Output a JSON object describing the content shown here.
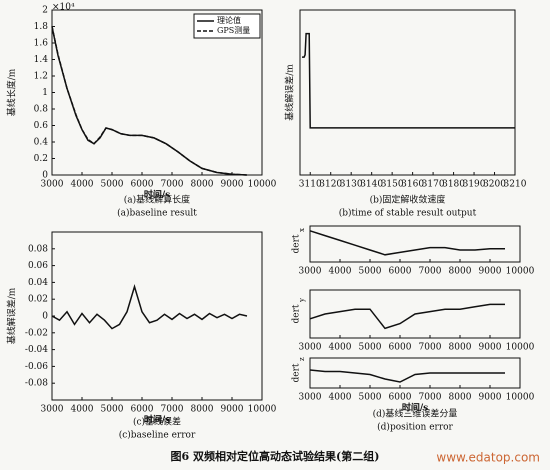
{
  "figure_caption": "图6  双频相对定位高动态试验结果(第二组)",
  "watermark": "www.edatop.com",
  "chart_data": [
    {
      "type": "line",
      "caption": "(a)基线解算长度",
      "caption_en": "(a)baseline result",
      "xlabel": "时间/s",
      "ylabel": "基线长度/m",
      "multiplier": "×10⁴",
      "legend": "upper right",
      "x": [
        3000,
        3200,
        3500,
        3800,
        4000,
        4200,
        4400,
        4600,
        4800,
        5000,
        5300,
        5600,
        6000,
        6400,
        6800,
        7200,
        7600,
        8000,
        8500,
        9000,
        9500
      ],
      "series": [
        {
          "name": "理论值",
          "color": "#111111",
          "dash": false,
          "values": [
            1.8,
            1.45,
            1.05,
            0.72,
            0.55,
            0.42,
            0.38,
            0.45,
            0.57,
            0.55,
            0.5,
            0.48,
            0.48,
            0.45,
            0.38,
            0.28,
            0.17,
            0.08,
            0.03,
            0.01,
            0
          ]
        },
        {
          "name": "GPS测量",
          "color": "#111111",
          "dash": true,
          "values": [
            1.8,
            1.46,
            1.05,
            0.73,
            0.55,
            0.43,
            0.38,
            0.46,
            0.57,
            0.55,
            0.5,
            0.48,
            0.48,
            0.45,
            0.38,
            0.28,
            0.17,
            0.08,
            0.03,
            0.01,
            0
          ]
        }
      ],
      "xlim": [
        3000,
        10000
      ],
      "xticks": [
        3000,
        4000,
        5000,
        6000,
        7000,
        8000,
        9000,
        10000
      ],
      "ylim": [
        0,
        2
      ],
      "yticks": [
        0,
        0.2,
        0.4,
        0.6,
        0.8,
        1,
        1.2,
        1.4,
        1.6,
        1.8,
        2
      ]
    },
    {
      "type": "line",
      "caption": "(b)固定解收敛速度",
      "caption_en": "(b)time of stable result output",
      "ylabel": "基线解误差/m",
      "x": [
        3106,
        3107,
        3107.5,
        3108,
        3109,
        3109.5,
        3110,
        3150,
        3210
      ],
      "series": [
        {
          "name": null,
          "color": "#111111",
          "dash": false,
          "values": [
            3,
            3,
            3.1,
            4,
            4,
            4,
            0,
            0,
            0
          ]
        }
      ],
      "xlim": [
        3105,
        3210
      ],
      "xticks": [
        3110,
        3120,
        3130,
        3140,
        3150,
        3160,
        3170,
        3180,
        3190,
        3200,
        3210
      ],
      "ylim": [
        -2,
        5
      ],
      "yticks": []
    },
    {
      "type": "line",
      "caption": "(c)基线误差",
      "caption_en": "(c)baseline error",
      "xlabel": "时间/s",
      "ylabel": "基线解误差/m",
      "x": [
        3000,
        3250,
        3500,
        3750,
        4000,
        4250,
        4500,
        4750,
        5000,
        5250,
        5500,
        5750,
        6000,
        6250,
        6500,
        6750,
        7000,
        7250,
        7500,
        7750,
        8000,
        8250,
        8500,
        8750,
        9000,
        9250,
        9500
      ],
      "series": [
        {
          "name": null,
          "color": "#111111",
          "dash": false,
          "values": [
            0,
            -0.005,
            0.005,
            -0.01,
            0.003,
            -0.008,
            0.002,
            -0.005,
            -0.015,
            -0.01,
            0.005,
            0.035,
            0.005,
            -0.008,
            -0.005,
            0.002,
            -0.004,
            0.003,
            -0.003,
            0.002,
            -0.004,
            0.003,
            -0.002,
            0.002,
            -0.003,
            0.002,
            0
          ]
        }
      ],
      "xlim": [
        3000,
        10000
      ],
      "xticks": [
        3000,
        4000,
        5000,
        6000,
        7000,
        8000,
        9000,
        10000
      ],
      "ylim": [
        -0.1,
        0.1
      ],
      "yticks": [
        -0.08,
        -0.06,
        -0.04,
        -0.02,
        0,
        0.02,
        0.04,
        0.06,
        0.08
      ]
    },
    {
      "type": "line",
      "ylabel": "dert",
      "ylabel_sub": "x",
      "x": [
        3000,
        3500,
        4000,
        4500,
        5000,
        5500,
        6000,
        6500,
        7000,
        7500,
        8000,
        8500,
        9000,
        9500
      ],
      "series": [
        {
          "name": null,
          "color": "#111111",
          "dash": false,
          "values": [
            0.08,
            0.06,
            0.04,
            0.02,
            0,
            -0.02,
            -0.01,
            0,
            0.01,
            0.01,
            0,
            0,
            0.005,
            0.005
          ]
        }
      ],
      "xlim": [
        3000,
        10000
      ],
      "xticks": [
        3000,
        4000,
        5000,
        6000,
        7000,
        8000,
        9000,
        10000
      ],
      "ylim": [
        -0.05,
        0.1
      ],
      "yticks": []
    },
    {
      "type": "line",
      "ylabel": "dert",
      "ylabel_sub": "y",
      "x": [
        3000,
        3500,
        4000,
        4500,
        5000,
        5500,
        6000,
        6500,
        7000,
        7500,
        8000,
        8500,
        9000,
        9500
      ],
      "series": [
        {
          "name": null,
          "color": "#111111",
          "dash": false,
          "values": [
            -0.01,
            0,
            0.005,
            0.01,
            0.01,
            -0.03,
            -0.02,
            0,
            0.005,
            0.01,
            0.01,
            0.015,
            0.02,
            0.02
          ]
        }
      ],
      "xlim": [
        3000,
        10000
      ],
      "xticks": [
        3000,
        4000,
        5000,
        6000,
        7000,
        8000,
        9000,
        10000
      ],
      "ylim": [
        -0.05,
        0.05
      ],
      "yticks": []
    },
    {
      "type": "line",
      "ylabel": "dert",
      "ylabel_sub": "z",
      "xlabel": "时间/s",
      "caption": "(d)基线三维误差分量",
      "caption_en": "(d)position error",
      "x": [
        3000,
        3500,
        4000,
        4500,
        5000,
        5500,
        6000,
        6500,
        7000,
        7500,
        8000,
        8500,
        9000,
        9500
      ],
      "series": [
        {
          "name": null,
          "color": "#111111",
          "dash": false,
          "values": [
            0.01,
            0.005,
            0.005,
            0,
            -0.005,
            -0.02,
            -0.03,
            -0.005,
            0,
            0,
            0,
            0,
            0,
            0
          ]
        }
      ],
      "xlim": [
        3000,
        10000
      ],
      "xticks": [
        3000,
        4000,
        5000,
        6000,
        7000,
        8000,
        9000,
        10000
      ],
      "ylim": [
        -0.05,
        0.05
      ],
      "yticks": []
    }
  ]
}
